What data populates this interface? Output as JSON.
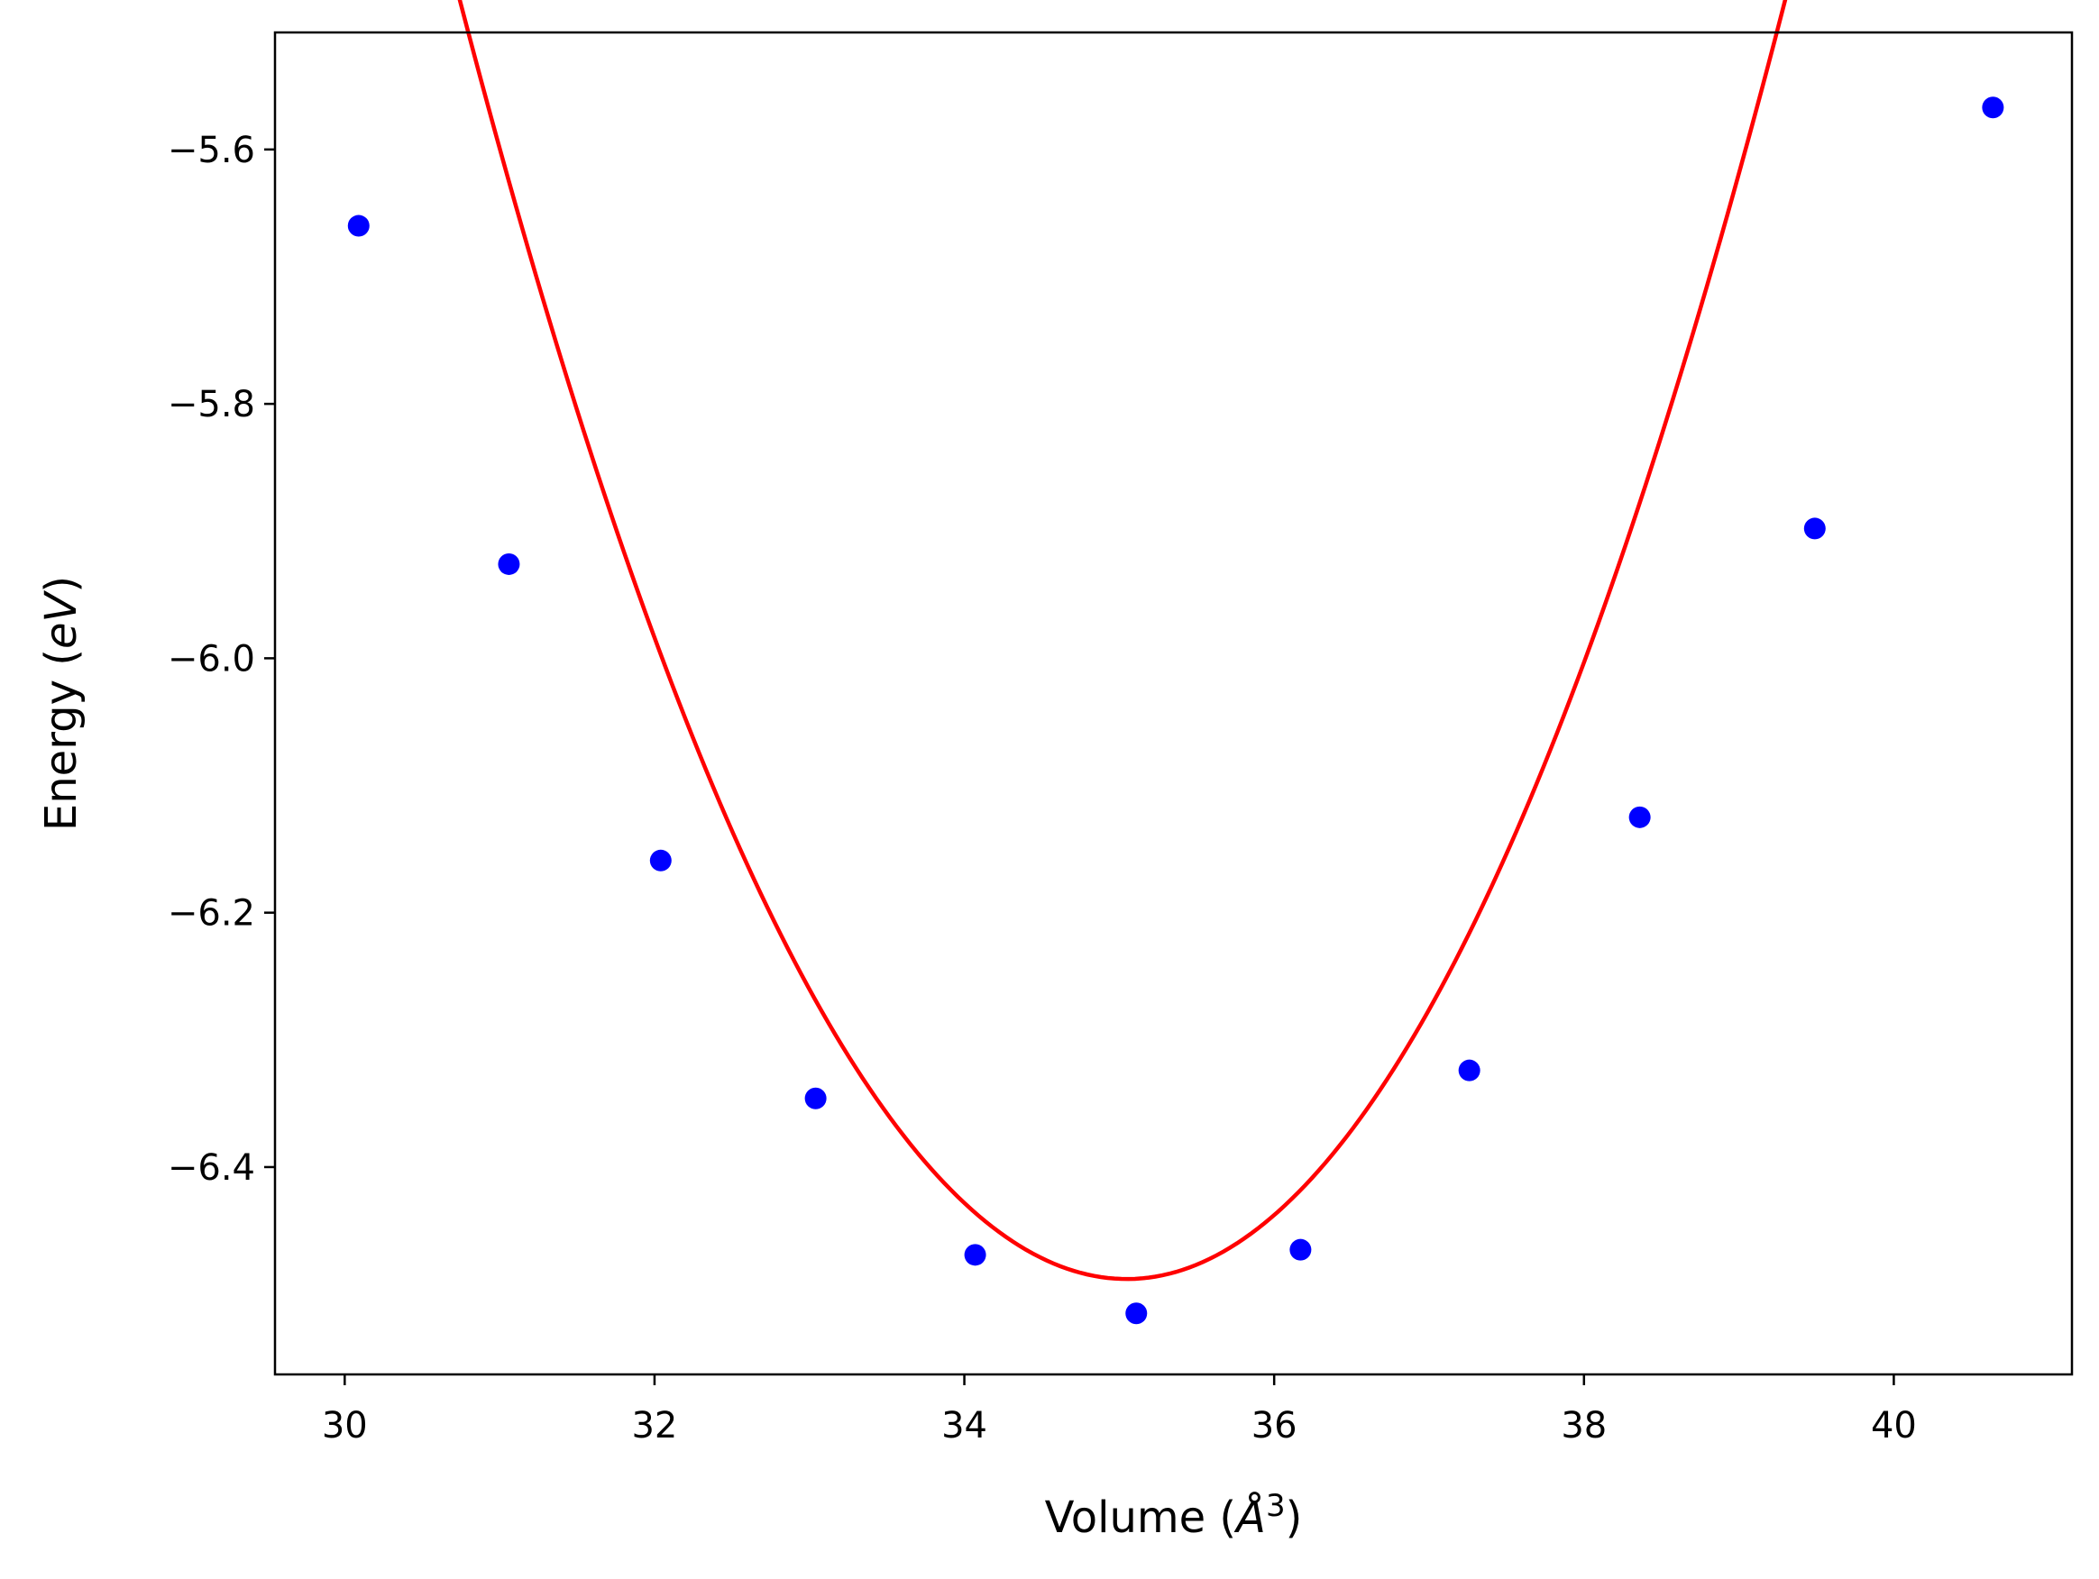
{
  "chart_data": {
    "type": "scatter",
    "title": "",
    "xlabel_prefix": "Volume (",
    "xlabel_symbol": "Å",
    "xlabel_power": "3",
    "xlabel_suffix": ")",
    "ylabel_prefix": "Energy (",
    "ylabel_unit": "eV",
    "ylabel_suffix": ")",
    "xlim": [
      29.55,
      41.15
    ],
    "ylim": [
      -6.563,
      -5.508
    ],
    "xticks": [
      30,
      32,
      34,
      36,
      38,
      40
    ],
    "xtick_labels": [
      "30",
      "32",
      "34",
      "36",
      "38",
      "40"
    ],
    "yticks": [
      -5.6,
      -5.8,
      -6.0,
      -6.2,
      -6.4
    ],
    "ytick_labels": [
      "−5.6",
      "−5.8",
      "−6.0",
      "−6.2",
      "−6.4"
    ],
    "grid": false,
    "legend": "none",
    "series": [
      {
        "type": "scatter",
        "color": "#0000ff",
        "x": [
          30.09,
          31.06,
          32.04,
          33.04,
          34.07,
          35.11,
          36.17,
          37.26,
          38.36,
          39.49,
          40.64
        ],
        "y": [
          -5.66,
          -5.926,
          -6.159,
          -6.346,
          -6.469,
          -6.515,
          -6.465,
          -6.324,
          -6.125,
          -5.898,
          -5.567
        ]
      },
      {
        "type": "line",
        "color": "#ff0000",
        "fit": "quadratic",
        "x_range": [
          30.09,
          40.64
        ],
        "vertex": [
          35.05,
          -6.488
        ],
        "curvature": [
          0.0542,
          0.0557
        ]
      }
    ]
  }
}
